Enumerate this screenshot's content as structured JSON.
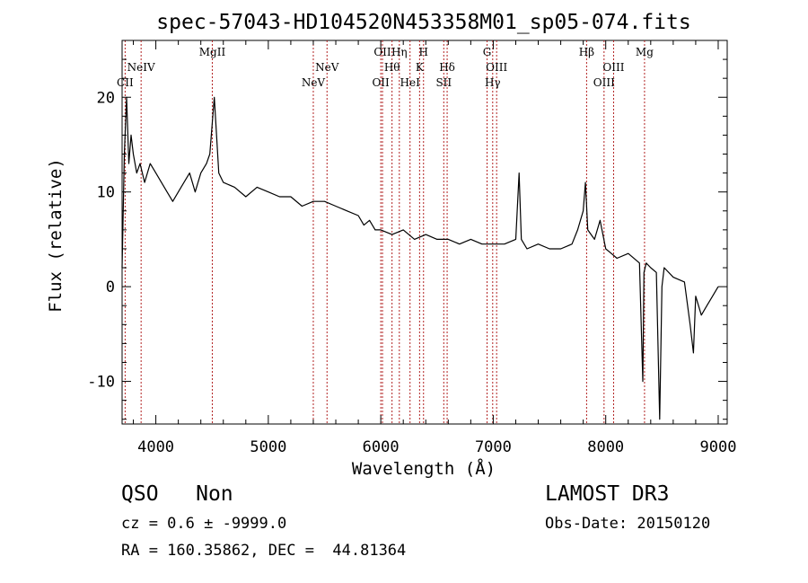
{
  "chart_data": {
    "type": "line",
    "title": "spec-57043-HD104520N453358M01_sp05-074.fits",
    "xlabel": "Wavelength (Å)",
    "ylabel": "Flux (relative)",
    "xlim": [
      3700,
      9080
    ],
    "ylim": [
      -14.5,
      26
    ],
    "xticks": [
      4000,
      5000,
      6000,
      7000,
      8000,
      9000
    ],
    "yticks": [
      -10,
      0,
      10,
      20
    ],
    "grid": false,
    "series": [
      {
        "x": [
          3700,
          3720,
          3740,
          3760,
          3780,
          3800,
          3830,
          3860,
          3900,
          3950,
          4000,
          4050,
          4100,
          4150,
          4200,
          4250,
          4300,
          4350,
          4400,
          4450,
          4480,
          4500,
          4520,
          4540,
          4560,
          4600,
          4700,
          4800,
          4900,
          5000,
          5100,
          5200,
          5300,
          5400,
          5500,
          5600,
          5700,
          5800,
          5850,
          5900,
          5950,
          6000,
          6100,
          6200,
          6300,
          6400,
          6500,
          6600,
          6700,
          6800,
          6900,
          7000,
          7100,
          7200,
          7230,
          7250,
          7300,
          7400,
          7500,
          7600,
          7700,
          7750,
          7800,
          7820,
          7840,
          7870,
          7900,
          7950,
          8000,
          8050,
          8100,
          8200,
          8300,
          8330,
          8340,
          8360,
          8400,
          8450,
          8480,
          8500,
          8520,
          8600,
          8700,
          8750,
          8780,
          8800,
          8850,
          8900,
          8950,
          9000
        ],
        "y": [
          2,
          14,
          20,
          13,
          16,
          14,
          12,
          13,
          11,
          13,
          12,
          11,
          10,
          9,
          10,
          11,
          12,
          10,
          12,
          13,
          14,
          17,
          20,
          16,
          12,
          11,
          10.5,
          9.5,
          10.5,
          10,
          9.5,
          9.5,
          8.5,
          9,
          9,
          8.5,
          8,
          7.5,
          6.5,
          7,
          6,
          6,
          5.5,
          6,
          5,
          5.5,
          5,
          5,
          4.5,
          5,
          4.5,
          4.5,
          4.5,
          5,
          12,
          5,
          4,
          4.5,
          4,
          4,
          4.5,
          6,
          8,
          11,
          6,
          5.5,
          5,
          7,
          4,
          3.5,
          3,
          3.5,
          2.5,
          -10,
          1.5,
          2.5,
          2,
          1.5,
          -14,
          0,
          2,
          1,
          0.5,
          -4,
          -7,
          -1,
          -3,
          -2,
          -1,
          0
        ]
      }
    ],
    "lines": [
      {
        "label": "CII",
        "x": 3727,
        "row": 3
      },
      {
        "label": "NeIV",
        "x": 3869,
        "row": 2
      },
      {
        "label": "MgII",
        "x": 4502,
        "row": 1
      },
      {
        "label": "NeV",
        "x": 5400,
        "row": 3
      },
      {
        "label": "NeV",
        "x": 5522,
        "row": 2
      },
      {
        "label": "OII",
        "x": 6000,
        "row": 3
      },
      {
        "label": "OII",
        "x": 6015,
        "row": 1
      },
      {
        "label": "Hθ",
        "x": 6100,
        "row": 2
      },
      {
        "label": "Hη",
        "x": 6165,
        "row": 1
      },
      {
        "label": "HeI",
        "x": 6260,
        "row": 3
      },
      {
        "label": "K",
        "x": 6345,
        "row": 2
      },
      {
        "label": "H",
        "x": 6380,
        "row": 1
      },
      {
        "label": "SII",
        "x": 6560,
        "row": 3
      },
      {
        "label": "Hδ",
        "x": 6590,
        "row": 2
      },
      {
        "label": "G",
        "x": 6945,
        "row": 1
      },
      {
        "label": "Hγ",
        "x": 6995,
        "row": 3
      },
      {
        "label": "OIII",
        "x": 7030,
        "row": 2
      },
      {
        "label": "Hβ",
        "x": 7830,
        "row": 1
      },
      {
        "label": "OIII",
        "x": 7985,
        "row": 3
      },
      {
        "label": "OIII",
        "x": 8070,
        "row": 2
      },
      {
        "label": "Mg",
        "x": 8345,
        "row": 1
      }
    ]
  },
  "footer": {
    "class_label": "QSO",
    "subclass": "Non",
    "cz": "cz = 0.6 ± -9999.0",
    "radec": "RA = 160.35862, DEC =  44.81364",
    "survey": "LAMOST DR3",
    "obs_date": "Obs-Date: 20150120"
  }
}
